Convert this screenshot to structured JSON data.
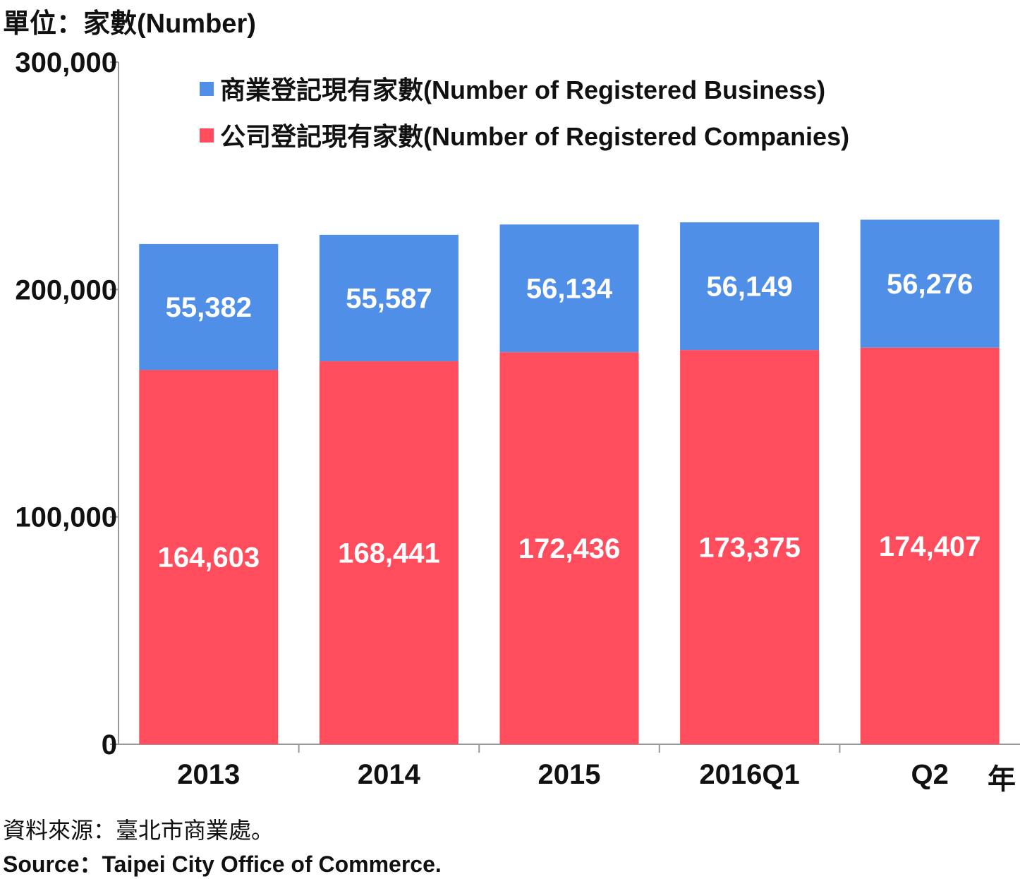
{
  "unit_label": "單位：家數(Number)",
  "year_suffix": "年",
  "source": {
    "cn": "資料來源：臺北市商業處。",
    "en": "Source：Taipei City Office of Commerce."
  },
  "colors": {
    "business": "#4f8fe8",
    "companies": "#ff4d5d",
    "axis": "#999999"
  },
  "chart_data": {
    "type": "bar",
    "stacked": true,
    "categories": [
      "2013",
      "2014",
      "2015",
      "2016Q1",
      "Q2"
    ],
    "series": [
      {
        "name": "公司登記現有家數(Number of Registered Companies)",
        "values": [
          164603,
          168441,
          172436,
          173375,
          174407
        ]
      },
      {
        "name": "商業登記現有家數(Number of Registered Business)",
        "values": [
          55382,
          55587,
          56134,
          56149,
          56276
        ]
      }
    ],
    "ylim": [
      0,
      300000
    ],
    "yticks": [
      0,
      100000,
      200000,
      300000
    ],
    "ytick_labels": [
      "0",
      "100,000",
      "200,000",
      "300,000"
    ],
    "title": "",
    "xlabel": "年",
    "ylabel": "單位：家數(Number)",
    "legend": {
      "placement": "top-center",
      "entries": [
        "商業登記現有家數(Number of Registered Business)",
        "公司登記現有家數(Number of Registered Companies)"
      ]
    },
    "grid": false
  }
}
